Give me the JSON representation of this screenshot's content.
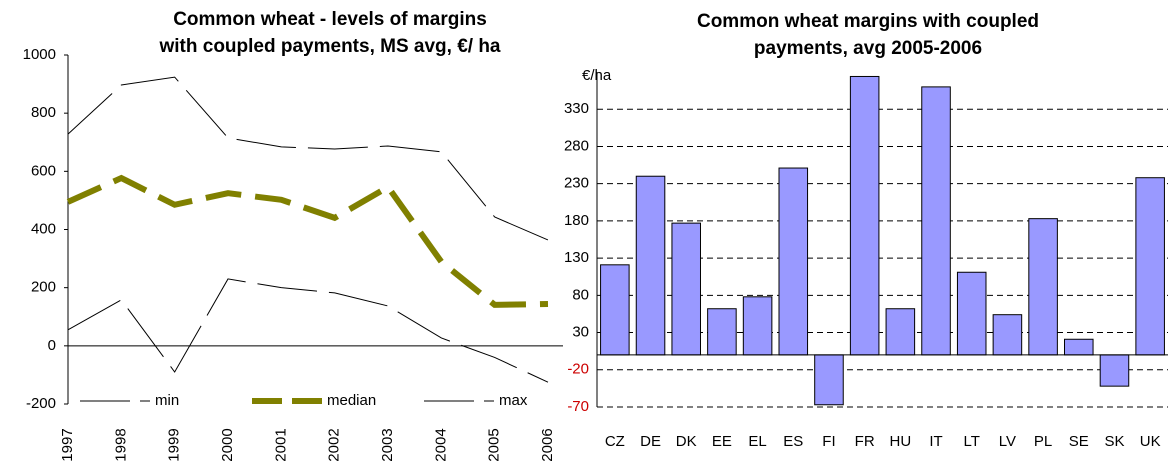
{
  "chart_data": [
    {
      "type": "line",
      "title": "Common wheat - levels of margins with coupled payments, MS avg, €/ ha",
      "title_lines": [
        "Common wheat - levels of margins",
        "with coupled payments, MS avg, €/ ha"
      ],
      "categories": [
        "1997",
        "1998",
        "1999",
        "2000",
        "2001",
        "2002",
        "2003",
        "2004",
        "2005",
        "2006"
      ],
      "series": [
        {
          "name": "min",
          "color": "#000000",
          "values": [
            55,
            158,
            -90,
            230,
            200,
            182,
            137,
            27,
            -40,
            -125
          ]
        },
        {
          "name": "median",
          "color": "#808000",
          "values": [
            495,
            577,
            485,
            525,
            502,
            440,
            546,
            289,
            141,
            144
          ]
        },
        {
          "name": "max",
          "color": "#000000",
          "values": [
            728,
            897,
            924,
            715,
            684,
            677,
            687,
            667,
            443,
            364
          ]
        }
      ],
      "ylim": [
        -200,
        1000
      ],
      "yticks": [
        -200,
        0,
        200,
        400,
        600,
        800,
        1000
      ],
      "legend": "bottom"
    },
    {
      "type": "bar",
      "title": "Common wheat margins with coupled payments, avg 2005-2006",
      "title_lines": [
        "Common wheat margins with coupled",
        "payments, avg 2005-2006"
      ],
      "y_label": "€/ha",
      "categories": [
        "CZ",
        "DE",
        "DK",
        "EE",
        "EL",
        "ES",
        "FI",
        "FR",
        "HU",
        "IT",
        "LT",
        "LV",
        "PL",
        "SE",
        "SK",
        "UK"
      ],
      "values": [
        121,
        240,
        177,
        62,
        78,
        251,
        -67,
        374,
        62,
        360,
        111,
        54,
        183,
        21,
        -42,
        238
      ],
      "color": "#9999ff",
      "negative_tick_color": "#cc0000",
      "ylim": [
        -70,
        380
      ],
      "yticks": [
        -70,
        -20,
        30,
        80,
        130,
        180,
        230,
        280,
        330
      ],
      "grid": true
    }
  ]
}
